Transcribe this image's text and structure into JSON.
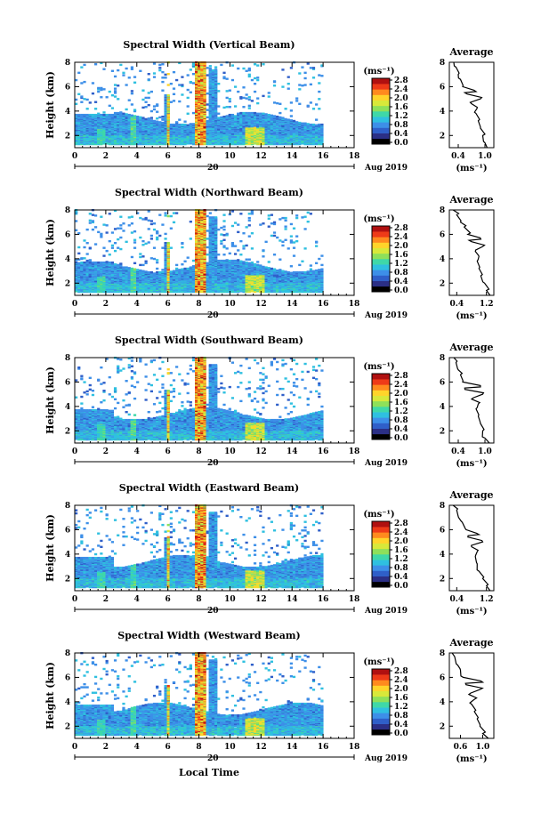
{
  "figure": {
    "xlabel": "Local Time",
    "date_label": "Aug 2019",
    "day_label": "20"
  },
  "colorbar": {
    "unit": "(ms⁻¹)",
    "ticks": [
      "0.0",
      "0.4",
      "0.8",
      "1.2",
      "1.6",
      "2.0",
      "2.4",
      "2.8"
    ],
    "colors": [
      "#000000",
      "#2b2f86",
      "#2f5fc9",
      "#3d8fe8",
      "#2fc0e0",
      "#3fd8a8",
      "#8ee05a",
      "#d8e83a",
      "#ffd42a",
      "#ff8a1e",
      "#ee3a18",
      "#b01010"
    ]
  },
  "panels": [
    {
      "title": "Spectral Width (Vertical Beam)",
      "avg_title": "Average",
      "avg_xticks": [
        "0.4",
        "1.0"
      ],
      "avg_xunit": "(ms⁻¹)"
    },
    {
      "title": "Spectral Width (Northward Beam)",
      "avg_title": "Average",
      "avg_xticks": [
        "0.4",
        "1.2"
      ],
      "avg_xunit": "(ms⁻¹)"
    },
    {
      "title": "Spectral Width (Southward Beam)",
      "avg_title": "Average",
      "avg_xticks": [
        "0.4",
        "1.0"
      ],
      "avg_xunit": "(ms⁻¹)"
    },
    {
      "title": "Spectral Width (Eastward Beam)",
      "avg_title": "Average",
      "avg_xticks": [
        "0.4",
        "1.2"
      ],
      "avg_xunit": "(ms⁻¹)"
    },
    {
      "title": "Spectral Width (Westward Beam)",
      "avg_title": "Average",
      "avg_xticks": [
        "0.6",
        "1.0"
      ],
      "avg_xunit": "(ms⁻¹)"
    }
  ],
  "chart_data": {
    "type": "heatmap",
    "panels": 5,
    "ylabel": "Height (km)",
    "xlabel": "Local Time",
    "xlim": [
      0,
      18
    ],
    "ylim": [
      1,
      8
    ],
    "xticks": [
      0,
      2,
      4,
      6,
      8,
      10,
      12,
      14,
      16,
      18
    ],
    "yticks": [
      2,
      4,
      6,
      8
    ],
    "colorbar_range": [
      0.0,
      2.8
    ],
    "average_profile_ylim": [
      1,
      8
    ],
    "average_profiles": [
      {
        "beam": "Vertical",
        "xlim": [
          0.2,
          1.2
        ],
        "points": [
          [
            1.05,
            1.0
          ],
          [
            1.0,
            1.4
          ],
          [
            0.95,
            2.0
          ],
          [
            0.9,
            2.6
          ],
          [
            0.85,
            3.2
          ],
          [
            0.8,
            3.8
          ],
          [
            0.82,
            4.2
          ],
          [
            0.7,
            4.6
          ],
          [
            0.9,
            5.0
          ],
          [
            0.6,
            5.4
          ],
          [
            0.8,
            5.6
          ],
          [
            0.5,
            6.0
          ],
          [
            0.45,
            6.6
          ],
          [
            0.4,
            7.0
          ],
          [
            0.35,
            7.6
          ],
          [
            0.3,
            8.0
          ]
        ]
      },
      {
        "beam": "Northward",
        "xlim": [
          0.2,
          1.4
        ],
        "points": [
          [
            1.3,
            1.0
          ],
          [
            1.2,
            1.4
          ],
          [
            1.15,
            2.0
          ],
          [
            1.05,
            2.6
          ],
          [
            1.0,
            3.2
          ],
          [
            0.95,
            3.8
          ],
          [
            1.0,
            4.2
          ],
          [
            0.9,
            4.6
          ],
          [
            1.1,
            5.0
          ],
          [
            0.8,
            5.4
          ],
          [
            1.05,
            5.6
          ],
          [
            0.7,
            6.0
          ],
          [
            0.6,
            6.6
          ],
          [
            0.5,
            7.0
          ],
          [
            0.4,
            7.6
          ],
          [
            0.3,
            8.0
          ]
        ]
      },
      {
        "beam": "Southward",
        "xlim": [
          0.2,
          1.2
        ],
        "points": [
          [
            1.1,
            1.0
          ],
          [
            1.0,
            1.4
          ],
          [
            0.95,
            2.0
          ],
          [
            0.9,
            2.6
          ],
          [
            0.85,
            3.2
          ],
          [
            0.8,
            3.8
          ],
          [
            0.85,
            4.2
          ],
          [
            0.7,
            4.6
          ],
          [
            0.95,
            5.0
          ],
          [
            0.55,
            5.4
          ],
          [
            0.9,
            5.6
          ],
          [
            0.5,
            6.0
          ],
          [
            0.45,
            6.6
          ],
          [
            0.4,
            7.0
          ],
          [
            0.35,
            7.6
          ],
          [
            0.3,
            8.0
          ]
        ]
      },
      {
        "beam": "Eastward",
        "xlim": [
          0.2,
          1.4
        ],
        "points": [
          [
            1.3,
            1.0
          ],
          [
            1.2,
            1.4
          ],
          [
            1.1,
            2.0
          ],
          [
            1.0,
            2.6
          ],
          [
            0.95,
            3.2
          ],
          [
            0.9,
            3.8
          ],
          [
            0.95,
            4.2
          ],
          [
            0.8,
            4.6
          ],
          [
            1.1,
            5.0
          ],
          [
            0.7,
            5.4
          ],
          [
            1.0,
            5.6
          ],
          [
            0.65,
            6.0
          ],
          [
            0.55,
            6.6
          ],
          [
            0.45,
            7.0
          ],
          [
            0.4,
            7.6
          ],
          [
            0.3,
            8.0
          ]
        ]
      },
      {
        "beam": "Westward",
        "xlim": [
          0.4,
          1.2
        ],
        "points": [
          [
            1.1,
            1.0
          ],
          [
            1.0,
            1.4
          ],
          [
            0.95,
            2.0
          ],
          [
            0.9,
            2.6
          ],
          [
            0.85,
            3.2
          ],
          [
            0.8,
            3.8
          ],
          [
            0.85,
            4.2
          ],
          [
            0.75,
            4.6
          ],
          [
            0.95,
            5.0
          ],
          [
            0.7,
            5.4
          ],
          [
            1.0,
            5.6
          ],
          [
            0.65,
            6.0
          ],
          [
            0.6,
            6.6
          ],
          [
            0.55,
            7.0
          ],
          [
            0.5,
            7.6
          ],
          [
            0.45,
            8.0
          ]
        ]
      }
    ]
  }
}
